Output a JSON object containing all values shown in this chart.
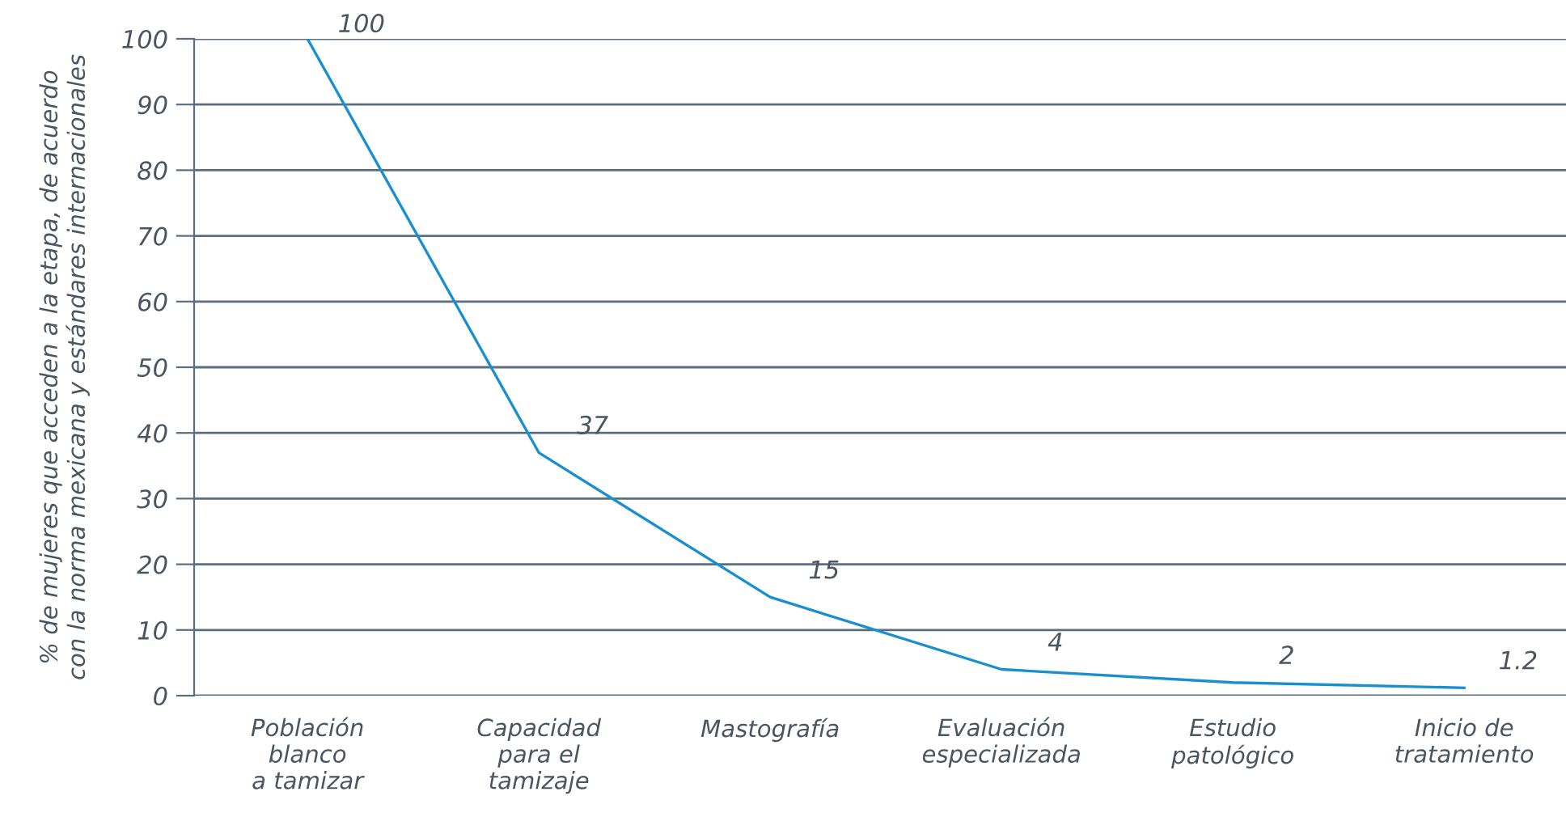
{
  "chart_data": {
    "type": "line",
    "ylabel": "% de mujeres que acceden a la etapa, de acuerdo\ncon la norma mexicana y estándares internacionales",
    "categories": [
      "Población\nblanco\na tamizar",
      "Capacidad\npara el\ntamizaje",
      "Mastografía",
      "Evaluación\nespecializada",
      "Estudio\npatológico",
      "Inicio de\ntratamiento"
    ],
    "series": [
      {
        "color": "#1a8fd0",
        "values": [
          100,
          37,
          15,
          4,
          2,
          1.2
        ]
      }
    ],
    "ylim": [
      0,
      100
    ],
    "yticks": [
      0,
      10,
      20,
      30,
      40,
      50,
      60,
      70,
      80,
      90,
      100
    ],
    "grid": "y",
    "marker": "none",
    "line_style": "solid",
    "data_labels": true
  }
}
